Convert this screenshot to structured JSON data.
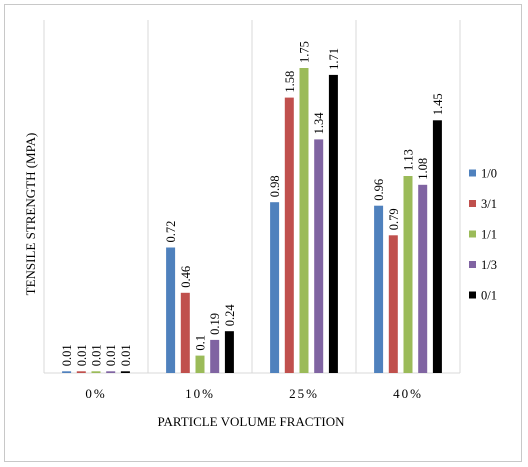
{
  "chart_data": {
    "type": "bar",
    "title": "",
    "xlabel": "PARTICLE VOLUME FRACTION",
    "ylabel": "TENSILE STRENGTH (MPA)",
    "categories": [
      "0%",
      "10%",
      "25%",
      "40%"
    ],
    "ylim": [
      0,
      1.9
    ],
    "grid": "vertical category separators",
    "legend_position": "right",
    "series": [
      {
        "name": "1/0",
        "color": "#4f81bd",
        "values": [
          0.01,
          0.72,
          0.98,
          0.96
        ],
        "labels": [
          "0.01",
          "0.72",
          "0.98",
          "0.96"
        ]
      },
      {
        "name": "3/1",
        "color": "#c0504d",
        "values": [
          0.01,
          0.46,
          1.58,
          0.79
        ],
        "labels": [
          "0.01",
          "0.46",
          "1.58",
          "0.79"
        ]
      },
      {
        "name": "1/1",
        "color": "#9bbb59",
        "values": [
          0.01,
          0.1,
          1.75,
          1.13
        ],
        "labels": [
          "0.01",
          "0.1",
          "1.75",
          "1.13"
        ]
      },
      {
        "name": "1/3",
        "color": "#8064a2",
        "values": [
          0.01,
          0.19,
          1.34,
          1.08
        ],
        "labels": [
          "0.01",
          "0.19",
          "1.34",
          "1.08"
        ]
      },
      {
        "name": "0/1",
        "color": "#000000",
        "values": [
          0.01,
          0.24,
          1.71,
          1.45
        ],
        "labels": [
          "0.01",
          "0.24",
          "1.71",
          "1.45"
        ]
      }
    ]
  }
}
